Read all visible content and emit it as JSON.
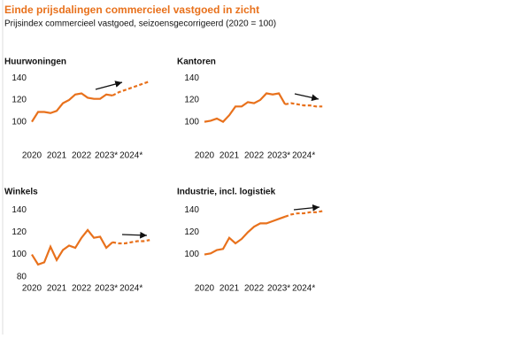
{
  "title": "Einde prijsdalingen commercieel vastgoed in zicht",
  "subtitle": "Prijsindex commercieel vastgoed, seizoensgecorrigeerd (2020 = 100)",
  "chart_data": [
    {
      "type": "line",
      "title": "Huurwoningen",
      "x": [
        2020,
        2020.25,
        2020.5,
        2020.75,
        2021,
        2021.25,
        2021.5,
        2021.75,
        2022,
        2022.25,
        2022.5,
        2022.75,
        2023,
        2023.25,
        2023.5,
        2023.75,
        2024,
        2024.25,
        2024.5,
        2024.75
      ],
      "series": [
        {
          "color": "#e8711c",
          "style": "solid",
          "values": [
            100,
            109,
            109,
            108,
            110,
            117,
            120,
            125,
            126,
            122,
            121,
            121,
            125,
            124,
            null,
            null,
            null,
            null,
            null,
            null
          ]
        },
        {
          "color": "#e8711c",
          "style": "dashed",
          "values": [
            null,
            null,
            null,
            null,
            null,
            null,
            null,
            null,
            null,
            null,
            null,
            null,
            null,
            124,
            127,
            129,
            131,
            133,
            135,
            137
          ]
        }
      ],
      "xlim": [
        2020,
        2024.85
      ],
      "xticks": [
        2020,
        2021,
        2022,
        {
          "value": 2023,
          "label": "2023*"
        },
        {
          "value": 2024,
          "label": "2024*"
        }
      ],
      "ylim": [
        90,
        145
      ],
      "yticks": [
        100,
        120,
        140
      ]
    },
    {
      "type": "line",
      "title": "Kantoren",
      "x": [
        2020,
        2020.25,
        2020.5,
        2020.75,
        2021,
        2021.25,
        2021.5,
        2021.75,
        2022,
        2022.25,
        2022.5,
        2022.75,
        2023,
        2023.25,
        2023.5,
        2023.75,
        2024,
        2024.25,
        2024.5,
        2024.75
      ],
      "series": [
        {
          "color": "#e8711c",
          "style": "solid",
          "values": [
            100,
            101,
            103,
            100,
            106,
            114,
            114,
            118,
            117,
            120,
            126,
            125,
            126,
            116,
            null,
            null,
            null,
            null,
            null,
            null
          ]
        },
        {
          "color": "#e8711c",
          "style": "dashed",
          "values": [
            null,
            null,
            null,
            null,
            null,
            null,
            null,
            null,
            null,
            null,
            null,
            null,
            null,
            116,
            117,
            116,
            115,
            115,
            114,
            114
          ]
        }
      ],
      "xlim": [
        2020,
        2024.85
      ],
      "xticks": [
        2020,
        2021,
        2022,
        {
          "value": 2023,
          "label": "2023*"
        },
        {
          "value": 2024,
          "label": "2024*"
        }
      ],
      "ylim": [
        90,
        145
      ],
      "yticks": [
        100,
        120,
        140
      ]
    },
    {
      "type": "line",
      "title": "Winkels",
      "x": [
        2020,
        2020.25,
        2020.5,
        2020.75,
        2021,
        2021.25,
        2021.5,
        2021.75,
        2022,
        2022.25,
        2022.5,
        2022.75,
        2023,
        2023.25,
        2023.5,
        2023.75,
        2024,
        2024.25,
        2024.5,
        2024.75
      ],
      "series": [
        {
          "color": "#e8711c",
          "style": "solid",
          "values": [
            100,
            91,
            93,
            107,
            95,
            104,
            108,
            106,
            115,
            122,
            115,
            116,
            106,
            111,
            null,
            null,
            null,
            null,
            null,
            null
          ]
        },
        {
          "color": "#e8711c",
          "style": "dashed",
          "values": [
            null,
            null,
            null,
            null,
            null,
            null,
            null,
            null,
            null,
            null,
            null,
            null,
            null,
            111,
            110,
            110,
            111,
            112,
            112,
            113
          ]
        }
      ],
      "xlim": [
        2020,
        2024.85
      ],
      "xticks": [
        2020,
        2021,
        2022,
        {
          "value": 2023,
          "label": "2023*"
        },
        {
          "value": 2024,
          "label": "2024*"
        }
      ],
      "ylim": [
        75,
        145
      ],
      "yticks": [
        80,
        100,
        120,
        140
      ]
    },
    {
      "type": "line",
      "title": "Industrie, incl. logistiek",
      "x": [
        2020,
        2020.25,
        2020.5,
        2020.75,
        2021,
        2021.25,
        2021.5,
        2021.75,
        2022,
        2022.25,
        2022.5,
        2022.75,
        2023,
        2023.25,
        2023.5,
        2023.75,
        2024,
        2024.25,
        2024.5,
        2024.75
      ],
      "series": [
        {
          "color": "#e8711c",
          "style": "solid",
          "values": [
            100,
            101,
            104,
            105,
            115,
            110,
            114,
            120,
            125,
            128,
            128,
            130,
            132,
            134,
            null,
            null,
            null,
            null,
            null,
            null
          ]
        },
        {
          "color": "#e8711c",
          "style": "dashed",
          "values": [
            null,
            null,
            null,
            null,
            null,
            null,
            null,
            null,
            null,
            null,
            null,
            null,
            null,
            134,
            136,
            137,
            137,
            138,
            138,
            139
          ]
        }
      ],
      "xlim": [
        2020,
        2024.85
      ],
      "xticks": [
        2020,
        2021,
        2022,
        {
          "value": 2023,
          "label": "2023*"
        },
        {
          "value": 2024,
          "label": "2024*"
        }
      ],
      "ylim": [
        75,
        145
      ],
      "yticks": [
        100,
        120,
        140
      ]
    }
  ]
}
